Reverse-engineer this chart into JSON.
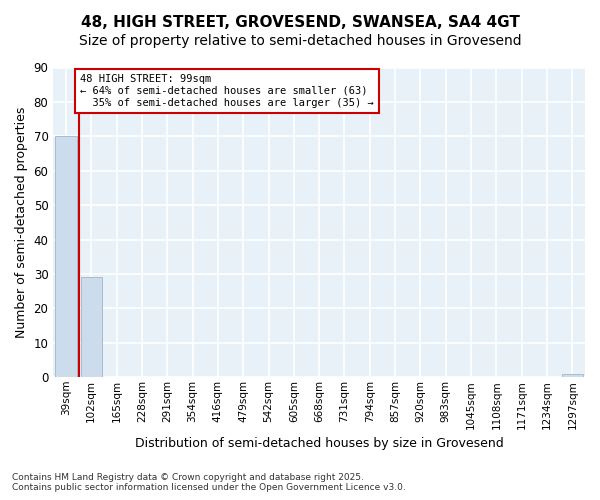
{
  "title": "48, HIGH STREET, GROVESEND, SWANSEA, SA4 4GT",
  "subtitle": "Size of property relative to semi-detached houses in Grovesend",
  "xlabel": "Distribution of semi-detached houses by size in Grovesend",
  "ylabel": "Number of semi-detached properties",
  "categories": [
    "39sqm",
    "102sqm",
    "165sqm",
    "228sqm",
    "291sqm",
    "354sqm",
    "416sqm",
    "479sqm",
    "542sqm",
    "605sqm",
    "668sqm",
    "731sqm",
    "794sqm",
    "857sqm",
    "920sqm",
    "983sqm",
    "1045sqm",
    "1108sqm",
    "1171sqm",
    "1234sqm",
    "1297sqm"
  ],
  "values": [
    70,
    29,
    0,
    0,
    0,
    0,
    0,
    0,
    0,
    0,
    0,
    0,
    0,
    0,
    0,
    0,
    0,
    0,
    0,
    0,
    1
  ],
  "bar_color": "#ccdcec",
  "bar_edge_color": "#aabccc",
  "background_color": "#e8f0f8",
  "grid_color": "#ffffff",
  "ylim": [
    0,
    90
  ],
  "red_line_x": 0.5,
  "annotation_line1": "48 HIGH STREET: 99sqm",
  "annotation_line2": "← 64% of semi-detached houses are smaller (63)",
  "annotation_line3": "  35% of semi-detached houses are larger (35) →",
  "annotation_box_color": "#ffffff",
  "annotation_box_edge": "#cc0000",
  "red_line_color": "#cc0000",
  "footer_line1": "Contains HM Land Registry data © Crown copyright and database right 2025.",
  "footer_line2": "Contains public sector information licensed under the Open Government Licence v3.0.",
  "title_fontsize": 11,
  "subtitle_fontsize": 10,
  "tick_fontsize": 7.5,
  "ylabel_fontsize": 9,
  "xlabel_fontsize": 9,
  "footer_fontsize": 6.5
}
